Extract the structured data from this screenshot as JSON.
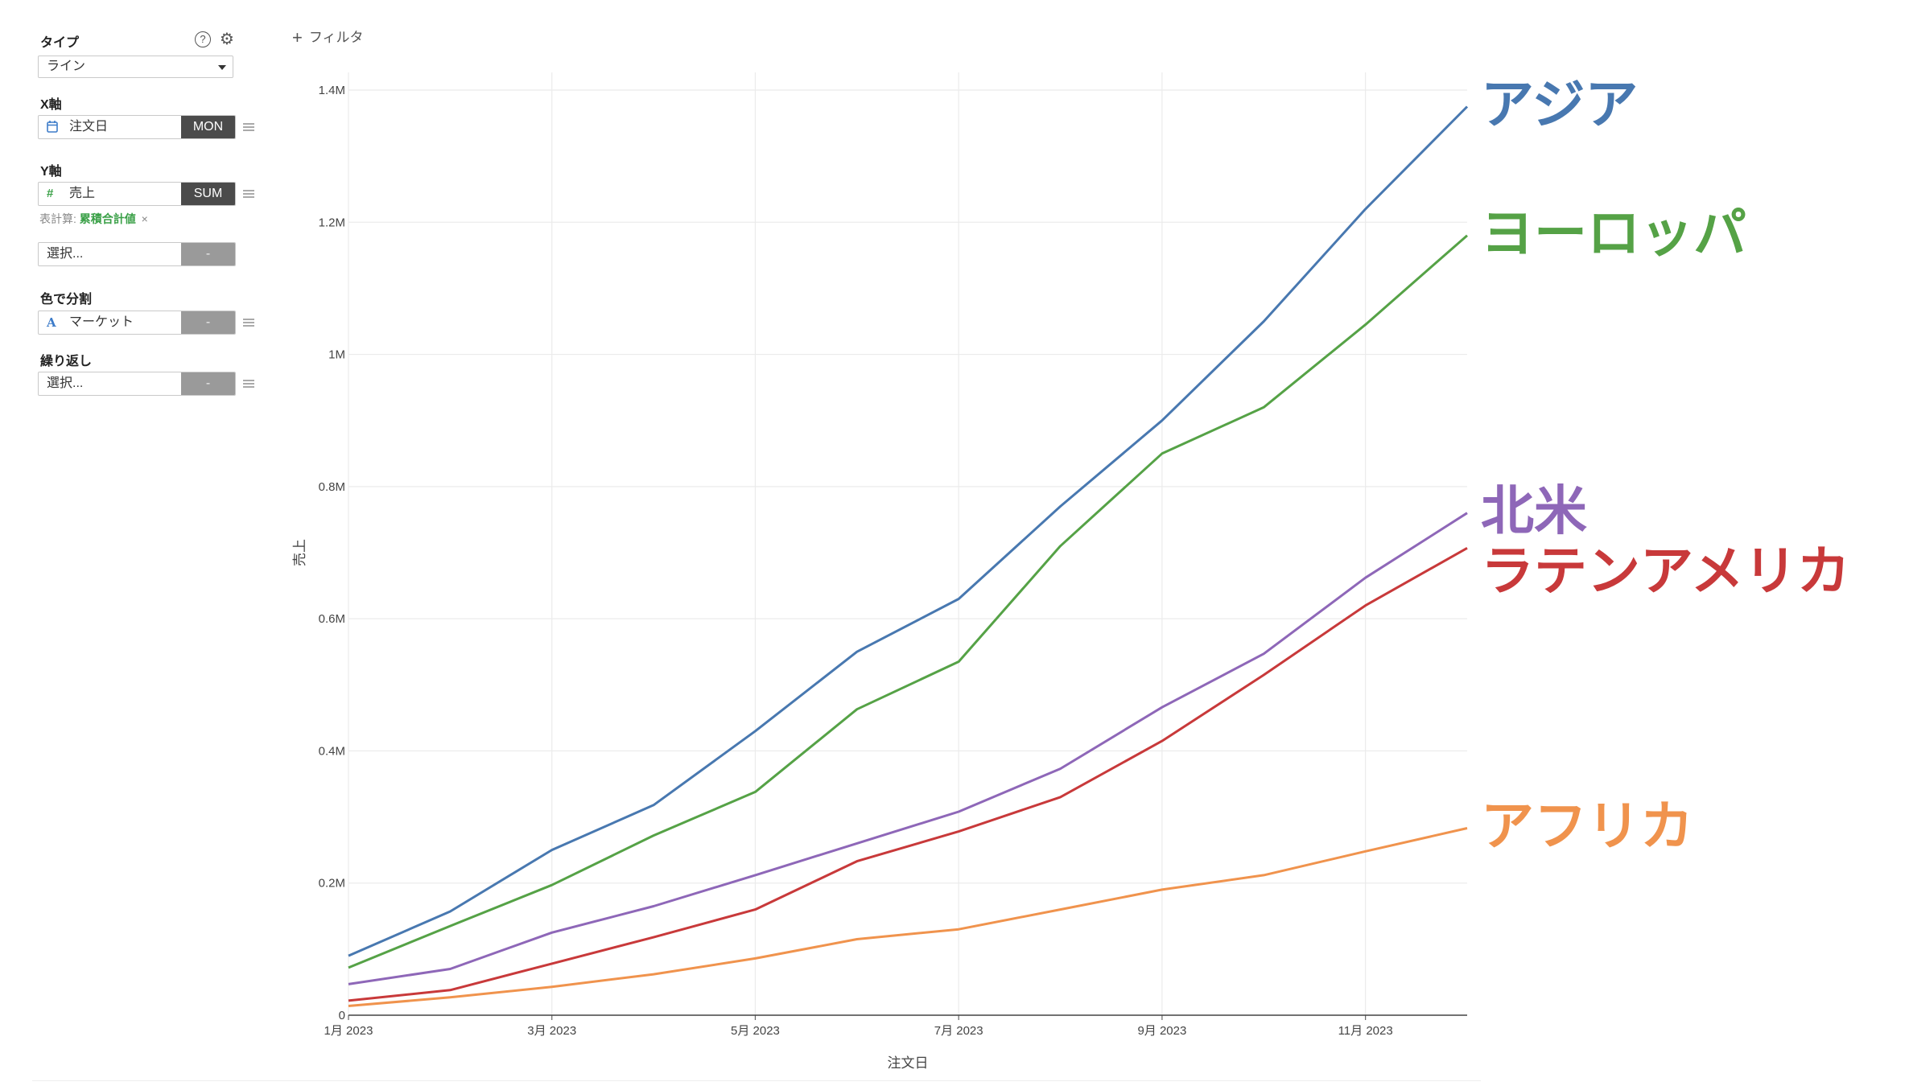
{
  "panel": {
    "type": {
      "label": "タイプ",
      "value": "ライン",
      "help_icon": "question-icon",
      "settings_icon": "gear-icon"
    },
    "x_axis": {
      "label": "X軸",
      "field": "注文日",
      "field_icon": "calendar-icon",
      "agg": "MON"
    },
    "y_axis": {
      "label": "Y軸",
      "field": "売上",
      "field_icon": "hash-icon",
      "agg": "SUM",
      "table_calc_label": "表計算:",
      "table_calc_value": "累積合計値",
      "table_calc_remove": "×"
    },
    "extra_select": {
      "placeholder": "選択...",
      "agg": "-"
    },
    "color": {
      "label": "色で分割",
      "field": "マーケット",
      "field_icon": "text-type-icon",
      "agg": "-"
    },
    "repeat": {
      "label": "繰り返し",
      "placeholder": "選択...",
      "agg": "-"
    }
  },
  "filter": {
    "label": "フィルタ",
    "icon": "plus-icon"
  },
  "colors": {
    "asia": "#4878b0",
    "europe": "#55a246",
    "north_america": "#8e67b8",
    "latin_america": "#c8393a",
    "africa": "#f0934d",
    "grid": "#ebebeb",
    "axis": "#444444"
  },
  "chart_data": {
    "type": "line",
    "xlabel": "注文日",
    "ylabel": "売上",
    "x": [
      "2023-01",
      "2023-02",
      "2023-03",
      "2023-04",
      "2023-05",
      "2023-06",
      "2023-07",
      "2023-08",
      "2023-09",
      "2023-10",
      "2023-11",
      "2023-12"
    ],
    "x_tick_labels": [
      "1月 2023",
      "3月 2023",
      "5月 2023",
      "7月 2023",
      "9月 2023",
      "11月 2023"
    ],
    "y_ticks": [
      0,
      200000,
      400000,
      600000,
      800000,
      1000000,
      1200000,
      1400000
    ],
    "y_tick_labels": [
      "0",
      "0.2M",
      "0.4M",
      "0.6M",
      "0.8M",
      "1M",
      "1.2M",
      "1.4M"
    ],
    "ylim": [
      0,
      1400000
    ],
    "grid": true,
    "legend": "right, direct labels at line ends",
    "series": [
      {
        "name": "アジア",
        "color": "#4878b0",
        "values": [
          90000,
          157000,
          250000,
          318000,
          430000,
          550000,
          630000,
          770000,
          900000,
          1050000,
          1220000,
          1375000
        ]
      },
      {
        "name": "ヨーロッパ",
        "color": "#55a246",
        "values": [
          72000,
          135000,
          197000,
          272000,
          338000,
          463000,
          535000,
          710000,
          850000,
          920000,
          1045000,
          1180000
        ]
      },
      {
        "name": "北米",
        "color": "#8e67b8",
        "values": [
          47000,
          70000,
          125000,
          165000,
          212000,
          260000,
          308000,
          373000,
          466000,
          547000,
          662000,
          760000
        ]
      },
      {
        "name": "ラテンアメリカ",
        "color": "#c8393a",
        "values": [
          22000,
          38000,
          78000,
          118000,
          160000,
          233000,
          278000,
          330000,
          415000,
          515000,
          620000,
          707000
        ]
      },
      {
        "name": "アフリカ",
        "color": "#f0934d",
        "values": [
          14000,
          27000,
          43000,
          62000,
          86000,
          115000,
          130000,
          160000,
          190000,
          212000,
          248000,
          283000
        ]
      }
    ]
  }
}
